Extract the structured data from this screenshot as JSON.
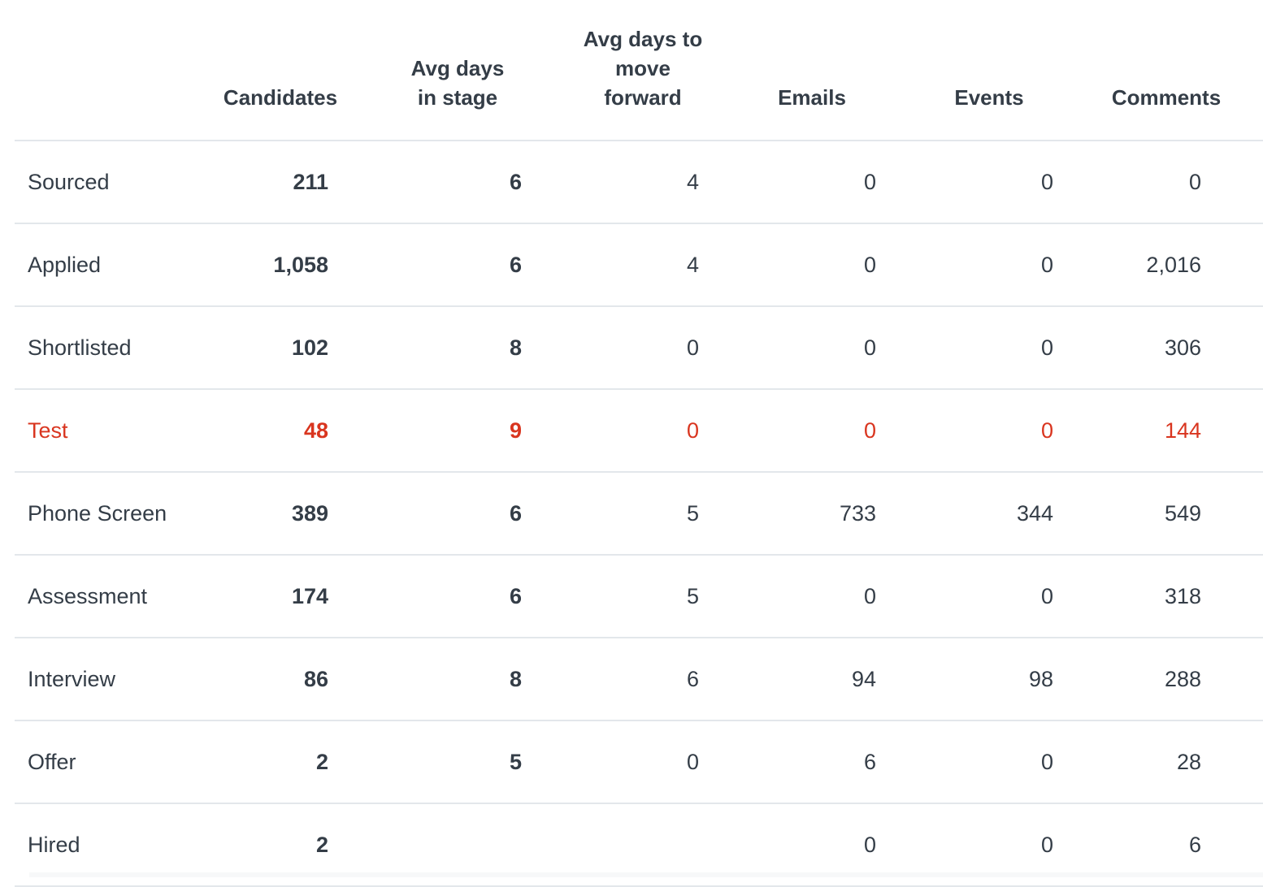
{
  "table": {
    "columns": [
      "",
      "Candidates",
      "Avg days in stage",
      "Avg days to move forward",
      "Emails",
      "Events",
      "Comments"
    ],
    "header_lines": {
      "candidates": "Candidates",
      "avg_days_in_stage": "Avg days in stage",
      "avg_days_move_forward": "Avg days to move forward",
      "emails": "Emails",
      "events": "Events",
      "comments": "Comments"
    },
    "rows": [
      {
        "stage": "Sourced",
        "candidates": "211",
        "avg_days_in_stage": "6",
        "avg_days_move_forward": "4",
        "emails": "0",
        "events": "0",
        "comments": "0",
        "highlight": false
      },
      {
        "stage": "Applied",
        "candidates": "1,058",
        "avg_days_in_stage": "6",
        "avg_days_move_forward": "4",
        "emails": "0",
        "events": "0",
        "comments": "2,016",
        "highlight": false
      },
      {
        "stage": "Shortlisted",
        "candidates": "102",
        "avg_days_in_stage": "8",
        "avg_days_move_forward": "0",
        "emails": "0",
        "events": "0",
        "comments": "306",
        "highlight": false
      },
      {
        "stage": "Test",
        "candidates": "48",
        "avg_days_in_stage": "9",
        "avg_days_move_forward": "0",
        "emails": "0",
        "events": "0",
        "comments": "144",
        "highlight": true
      },
      {
        "stage": "Phone Screen",
        "candidates": "389",
        "avg_days_in_stage": "6",
        "avg_days_move_forward": "5",
        "emails": "733",
        "events": "344",
        "comments": "549",
        "highlight": false
      },
      {
        "stage": "Assessment",
        "candidates": "174",
        "avg_days_in_stage": "6",
        "avg_days_move_forward": "5",
        "emails": "0",
        "events": "0",
        "comments": "318",
        "highlight": false
      },
      {
        "stage": "Interview",
        "candidates": "86",
        "avg_days_in_stage": "8",
        "avg_days_move_forward": "6",
        "emails": "94",
        "events": "98",
        "comments": "288",
        "highlight": false
      },
      {
        "stage": "Offer",
        "candidates": "2",
        "avg_days_in_stage": "5",
        "avg_days_move_forward": "0",
        "emails": "6",
        "events": "0",
        "comments": "28",
        "highlight": false
      },
      {
        "stage": "Hired",
        "candidates": "2",
        "avg_days_in_stage": "",
        "avg_days_move_forward": "",
        "emails": "0",
        "events": "0",
        "comments": "6",
        "highlight": false
      }
    ]
  },
  "colors": {
    "text": "#343d47",
    "alert": "#d9351f",
    "divider": "#e3e7eb"
  }
}
